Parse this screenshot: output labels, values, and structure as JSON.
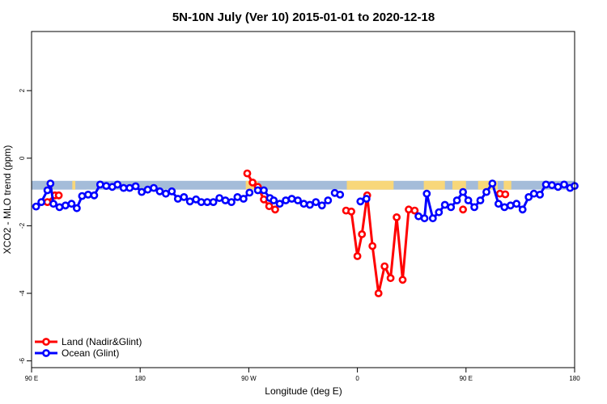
{
  "chart_data": {
    "type": "line",
    "title": "5N-10N July (Ver 10)   2015-01-01 to 2020-12-18",
    "xlabel": "Longitude (deg E)",
    "ylabel": "XCO2 - MLO trend (ppm)",
    "xlim": [
      90,
      450
    ],
    "ylim": [
      -6.2,
      3.75
    ],
    "x_ticks": [
      {
        "value": 90,
        "label": "90 E"
      },
      {
        "value": 162,
        "label": "180"
      },
      {
        "value": 234,
        "label": "90 W"
      },
      {
        "value": 306,
        "label": "0"
      },
      {
        "value": 378,
        "label": "90 E"
      },
      {
        "value": 450,
        "label": "180"
      }
    ],
    "y_ticks": [
      {
        "value": -6,
        "label": "-6"
      },
      {
        "value": -4,
        "label": "-4"
      },
      {
        "value": -2,
        "label": "-2"
      },
      {
        "value": 0,
        "label": "0"
      },
      {
        "value": 2,
        "label": "2"
      }
    ],
    "legend": {
      "position": "bottom-left",
      "entries": [
        {
          "label": "Land (Nadir&Glint)",
          "color": "#ff0000"
        },
        {
          "label": "Ocean (Glint)",
          "color": "#0000ff"
        }
      ]
    },
    "map_strip": {
      "ymin": -0.93,
      "ymax": -0.67,
      "ocean_color": "#a4bcd9",
      "land_color": "#f8d77a",
      "land_spans": [
        [
          100,
          104
        ],
        [
          117,
          119
        ],
        [
          232,
          240
        ],
        [
          299,
          330
        ],
        [
          350,
          364
        ],
        [
          369,
          378
        ],
        [
          386,
          399
        ],
        [
          403,
          408
        ]
      ]
    },
    "series": [
      {
        "name": "Land (Nadir&Glint)",
        "color": "#ff0000",
        "segments": [
          {
            "x": [
              100.5,
              105.5,
              108
            ],
            "y": [
              -1.3,
              -1.1,
              -1.1
            ]
          },
          {
            "x": [
              233,
              236.5,
              240,
              244,
              247.5,
              251.5
            ],
            "y": [
              -0.45,
              -0.72,
              -0.85,
              -1.22,
              -1.42,
              -1.52
            ]
          },
          {
            "x": [
              298.5,
              302,
              306,
              309,
              312.5,
              316,
              320,
              324,
              328,
              332,
              336,
              340,
              344
            ],
            "y": [
              -1.55,
              -1.58,
              -2.9,
              -2.25,
              -1.1,
              -2.6,
              -4.0,
              -3.2,
              -3.55,
              -1.75,
              -3.6,
              -1.52,
              -1.55
            ]
          },
          {
            "x": [
              376
            ],
            "y": [
              -1.52
            ]
          },
          {
            "x": [
              400.5,
              404
            ],
            "y": [
              -1.05,
              -1.07
            ]
          }
        ]
      },
      {
        "name": "Ocean (Glint)",
        "color": "#0000ff",
        "segments": [
          {
            "x": [
              93,
              96.5,
              100.5,
              102.5,
              104.5,
              108.5,
              112.5,
              116.5,
              120,
              123.5,
              127.5,
              131.5,
              135.5,
              139.5,
              143.5,
              147,
              151,
              155,
              159,
              163,
              167,
              171,
              175,
              179,
              183,
              187,
              191,
              195,
              199,
              202.5,
              206.5,
              210.5,
              214.5,
              218.5,
              222.5,
              226.5,
              230.5,
              234.5
            ],
            "y": [
              -1.43,
              -1.3,
              -0.95,
              -0.75,
              -1.35,
              -1.45,
              -1.4,
              -1.35,
              -1.48,
              -1.12,
              -1.08,
              -1.1,
              -0.78,
              -0.82,
              -0.85,
              -0.78,
              -0.88,
              -0.88,
              -0.83,
              -1.0,
              -0.93,
              -0.88,
              -0.98,
              -1.05,
              -0.98,
              -1.2,
              -1.15,
              -1.28,
              -1.22,
              -1.3,
              -1.3,
              -1.3,
              -1.18,
              -1.25,
              -1.3,
              -1.15,
              -1.2,
              -1.02
            ]
          },
          {
            "x": [
              240,
              244,
              248,
              250.5,
              254.5,
              258.5,
              262.5,
              266.5,
              270.5,
              274.5,
              278.5,
              282.5,
              286.5
            ],
            "y": [
              -0.95,
              -0.95,
              -1.18,
              -1.25,
              -1.35,
              -1.25,
              -1.2,
              -1.25,
              -1.35,
              -1.38,
              -1.3,
              -1.4,
              -1.25
            ]
          },
          {
            "x": [
              291,
              294.5
            ],
            "y": [
              -1.03,
              -1.08
            ]
          },
          {
            "x": [
              308,
              312
            ],
            "y": [
              -1.28,
              -1.2
            ]
          },
          {
            "x": [
              346.5,
              350.5,
              352,
              356,
              360,
              364,
              368,
              372,
              376,
              379.5,
              383.5,
              387.5,
              391.5,
              395.5,
              399.5,
              403.5,
              407.5,
              411.5,
              415.5,
              419.5,
              423,
              427,
              431,
              435,
              439,
              443,
              447,
              450
            ],
            "y": [
              -1.72,
              -1.78,
              -1.05,
              -1.78,
              -1.6,
              -1.38,
              -1.45,
              -1.25,
              -1.0,
              -1.25,
              -1.45,
              -1.25,
              -1.0,
              -0.75,
              -1.35,
              -1.45,
              -1.4,
              -1.35,
              -1.52,
              -1.15,
              -1.05,
              -1.08,
              -0.78,
              -0.8,
              -0.85,
              -0.78,
              -0.88,
              -0.82
            ]
          }
        ]
      }
    ]
  }
}
